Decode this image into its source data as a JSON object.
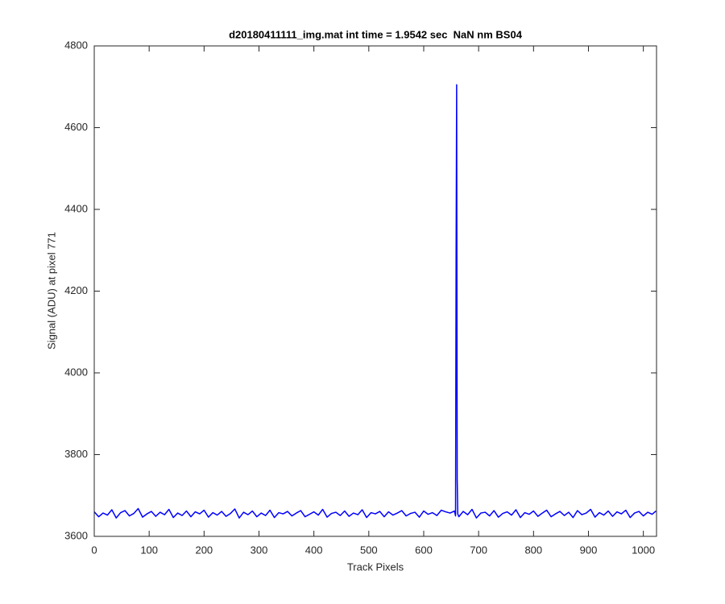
{
  "chart_data": {
    "type": "line",
    "title": "d20180411111_img.mat int time = 1.9542 sec  NaN nm BS04",
    "x_label": "Track Pixels",
    "y_label": "Signal (ADU) at pixel 771",
    "color": "#0000ff",
    "xlim": [
      0,
      1024
    ],
    "ylim": [
      3600,
      4800
    ],
    "xticks": [
      0,
      100,
      200,
      300,
      400,
      500,
      600,
      700,
      800,
      900,
      1000
    ],
    "yticks": [
      3600,
      3800,
      4000,
      4200,
      4400,
      4600,
      4800
    ],
    "grid": false,
    "x": [
      0,
      8,
      16,
      24,
      32,
      40,
      48,
      56,
      64,
      72,
      80,
      88,
      96,
      104,
      112,
      120,
      128,
      136,
      144,
      152,
      160,
      168,
      176,
      184,
      192,
      200,
      208,
      216,
      224,
      232,
      240,
      248,
      256,
      264,
      272,
      280,
      288,
      296,
      304,
      312,
      320,
      328,
      336,
      344,
      352,
      360,
      368,
      376,
      384,
      392,
      400,
      408,
      416,
      424,
      432,
      440,
      448,
      456,
      464,
      472,
      480,
      488,
      496,
      504,
      512,
      520,
      528,
      536,
      544,
      552,
      560,
      568,
      576,
      584,
      592,
      600,
      608,
      616,
      624,
      632,
      640,
      648,
      656,
      658,
      659,
      660,
      661,
      662,
      664,
      672,
      680,
      688,
      696,
      704,
      712,
      720,
      728,
      736,
      744,
      752,
      760,
      768,
      776,
      784,
      792,
      800,
      808,
      816,
      824,
      832,
      840,
      848,
      856,
      864,
      872,
      880,
      888,
      896,
      904,
      912,
      920,
      928,
      936,
      944,
      952,
      960,
      968,
      976,
      984,
      992,
      1000,
      1008,
      1016,
      1023
    ],
    "values": [
      3660,
      3648,
      3657,
      3652,
      3665,
      3645,
      3658,
      3663,
      3650,
      3656,
      3668,
      3647,
      3655,
      3661,
      3649,
      3659,
      3653,
      3666,
      3646,
      3657,
      3651,
      3662,
      3648,
      3660,
      3655,
      3664,
      3647,
      3658,
      3652,
      3661,
      3649,
      3656,
      3667,
      3645,
      3659,
      3653,
      3662,
      3648,
      3657,
      3651,
      3664,
      3646,
      3658,
      3655,
      3661,
      3650,
      3657,
      3663,
      3648,
      3654,
      3660,
      3652,
      3666,
      3647,
      3656,
      3659,
      3651,
      3662,
      3649,
      3657,
      3653,
      3665,
      3646,
      3658,
      3655,
      3661,
      3648,
      3660,
      3652,
      3657,
      3663,
      3650,
      3656,
      3659,
      3647,
      3662,
      3654,
      3658,
      3651,
      3664,
      3660,
      3657,
      3662,
      3650,
      4290,
      4705,
      3740,
      3655,
      3648,
      3661,
      3653,
      3666,
      3645,
      3657,
      3659,
      3650,
      3663,
      3647,
      3656,
      3660,
      3652,
      3665,
      3646,
      3658,
      3654,
      3662,
      3649,
      3657,
      3664,
      3648,
      3655,
      3661,
      3651,
      3659,
      3646,
      3663,
      3653,
      3657,
      3666,
      3647,
      3658,
      3652,
      3662,
      3649,
      3660,
      3655,
      3664,
      3646,
      3657,
      3661,
      3650,
      3659,
      3654,
      3662
    ]
  }
}
